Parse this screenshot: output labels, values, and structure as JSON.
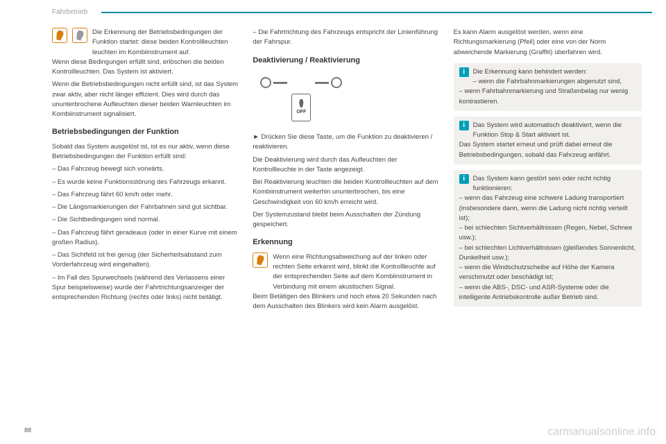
{
  "header": {
    "title": "Fahrbetrieb"
  },
  "page_number": "88",
  "watermark": "carmanualsonline.info",
  "col1": {
    "intro_text": "Die Erkennung der Betriebsbedingungen der Funktion startet: diese beiden Kontrollleuchten leuchten im Kombiinstrument auf.",
    "para2": "Wenn diese Bedingungen erfüllt sind, erlöschen die beiden Kontrollleuchten. Das System ist aktiviert.",
    "para3": "Wenn die Betriebsbedingungen nicht erfüllt sind, ist das System zwar aktiv, aber nicht länger effizient. Dies wird durch das ununterbrochene Aufleuchten dieser beiden Warnleuchten im Kombiinstrument signalisiert.",
    "heading1": "Betriebsbedingungen der Funktion",
    "para4": "Sobald das System ausgelöst ist, ist es nur aktiv, wenn diese Betriebsbedingungen der Funktion erfüllt sind:",
    "b1": "–  Das Fahrzeug bewegt sich vorwärts.",
    "b2": "–  Es wurde keine Funktionsstörung des Fahrzeugs erkannt.",
    "b3": "–  Das Fahrzeug fährt 60 km/h oder mehr.",
    "b4": "–  Die Längsmarkierungen der Fahrbahnen sind gut sichtbar.",
    "b5": "–  Die Sichtbedingungen sind normal.",
    "b6": "–  Das Fahrzeug fährt geradeaus (oder in einer Kurve mit einem großen Radius).",
    "b7": "–  Das Sichtfeld ist frei genug (der Sicherheitsabstand zum Vorderfahrzeug wird eingehalten).",
    "b8": "–  Im Fall des Spurwechsels (während des Verlassens einer Spur beispielsweise) wurde der Fahrtrichtungsanzeiger der entsprechenden Richtung (rechts oder links) nicht betätigt."
  },
  "col2": {
    "b1": "–  Die Fahrtrichtung des Fahrzeugs entspricht der Linienführung der Fahrspur.",
    "heading1": "Deaktivierung / Reaktivierung",
    "off_label": "OFF",
    "para1": "►  Drücken Sie diese Taste, um die Funktion zu deaktivieren / reaktivieren.",
    "para2": "Die Deaktivierung wird durch das Aufleuchten der Kontrollleuchte in der Taste angezeigt.",
    "para3": "Bei Reaktivierung leuchten die beiden Kontrollleuchten auf dem Kombiinstrument weiterhin ununterbrochen, bis eine Geschwindigkeit von 60 km/h erreicht wird.",
    "para4": "Der Systemzustand bleibt beim Ausschalten der Zündung gespeichert.",
    "heading2": "Erkennung",
    "erkennung_text": "Wenn eine Richtungsabweichung auf der linken oder rechten Seite erkannt wird, blinkt die Kontrollleuchte auf der entsprechenden Seite auf dem Kombiinstrument in Verbindung mit einem akustischen Signal.",
    "para5": "Beim Betätigen des Blinkers und noch etwa 20 Sekunden nach dem Ausschalten des Blinkers wird kein Alarm ausgelöst."
  },
  "col3": {
    "para1": "Es kann Alarm ausgelöst werden, wenn eine Richtungsmarkierung (Pfeil) oder eine von der Norm abweichende Markierung (Graffiti) überfahren wird.",
    "info1_line1": "Die Erkennung kann behindert werden:",
    "info1_b1": "–  wenn die Fahrbahnmarkierungen abgenutzt sind,",
    "info1_b2": "–  wenn Fahrbahnmarkierung und Straßenbelag nur wenig kontrastieren.",
    "info2_line1": "Das System wird automatisch deaktiviert, wenn die Funktion Stop & Start aktiviert ist.",
    "info2_line2": "Das System startet erneut und prüft dabei erneut die Betriebsbedingungen, sobald das Fahrzeug anfährt.",
    "info3_line1": "Das System kann gestört sein oder nicht richtig funktionieren:",
    "info3_b1": "–  wenn das Fahrzeug eine schwere Ladung transportiert (insbesondere dann, wenn die Ladung nicht richtig verteilt ist);",
    "info3_b2": "–  bei schlechten Sichtverhältnissen (Regen, Nebel, Schnee usw.);",
    "info3_b3": "–  bei schlechten Lichtverhältnissen (gleißendes Sonnenlicht, Dunkelheit usw.);",
    "info3_b4": "–  wenn die Windschutzscheibe auf Höhe der Kamera verschmutzt oder beschädigt ist;",
    "info3_b5": "–  wenn die ABS-, DSC- und ASR-Systeme oder die intelligente Antriebskontrolle außer Betrieb sind."
  }
}
